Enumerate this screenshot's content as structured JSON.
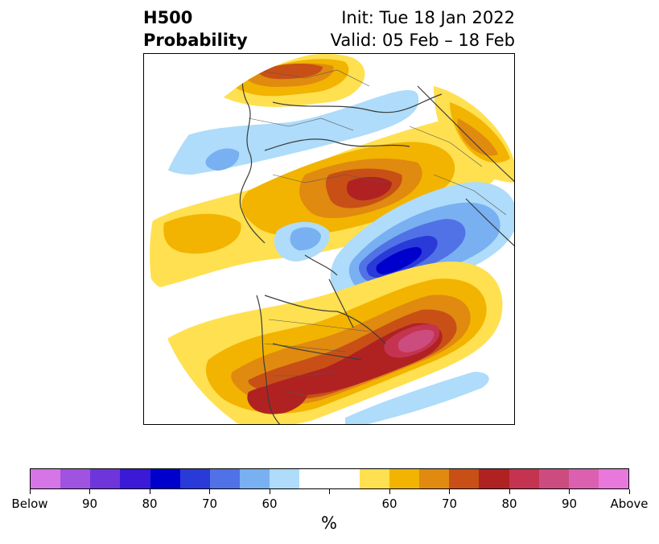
{
  "title": {
    "left_line1": "H500",
    "left_line2": "Probability",
    "right_line1": "Init: Tue 18 Jan 2022",
    "right_line2": "Valid: 05 Feb – 18 Feb"
  },
  "colorbar": {
    "colors": [
      "#d676e6",
      "#a052e0",
      "#6e36da",
      "#3a1ad6",
      "#0000cc",
      "#2a3ad8",
      "#5072e6",
      "#78b0f2",
      "#aedcfa",
      "#ffffff",
      "#ffffff",
      "#ffe050",
      "#f2b400",
      "#e08a10",
      "#c85016",
      "#b02222",
      "#c43450",
      "#cc4c80",
      "#dc60b0",
      "#e878dc"
    ],
    "tick_labels": [
      "Below",
      "90",
      "80",
      "70",
      "60",
      "",
      "60",
      "70",
      "80",
      "90",
      "Above"
    ],
    "unit": "%"
  },
  "colors": {
    "land_outline": "#3c3c3c",
    "coast": "#303030"
  }
}
